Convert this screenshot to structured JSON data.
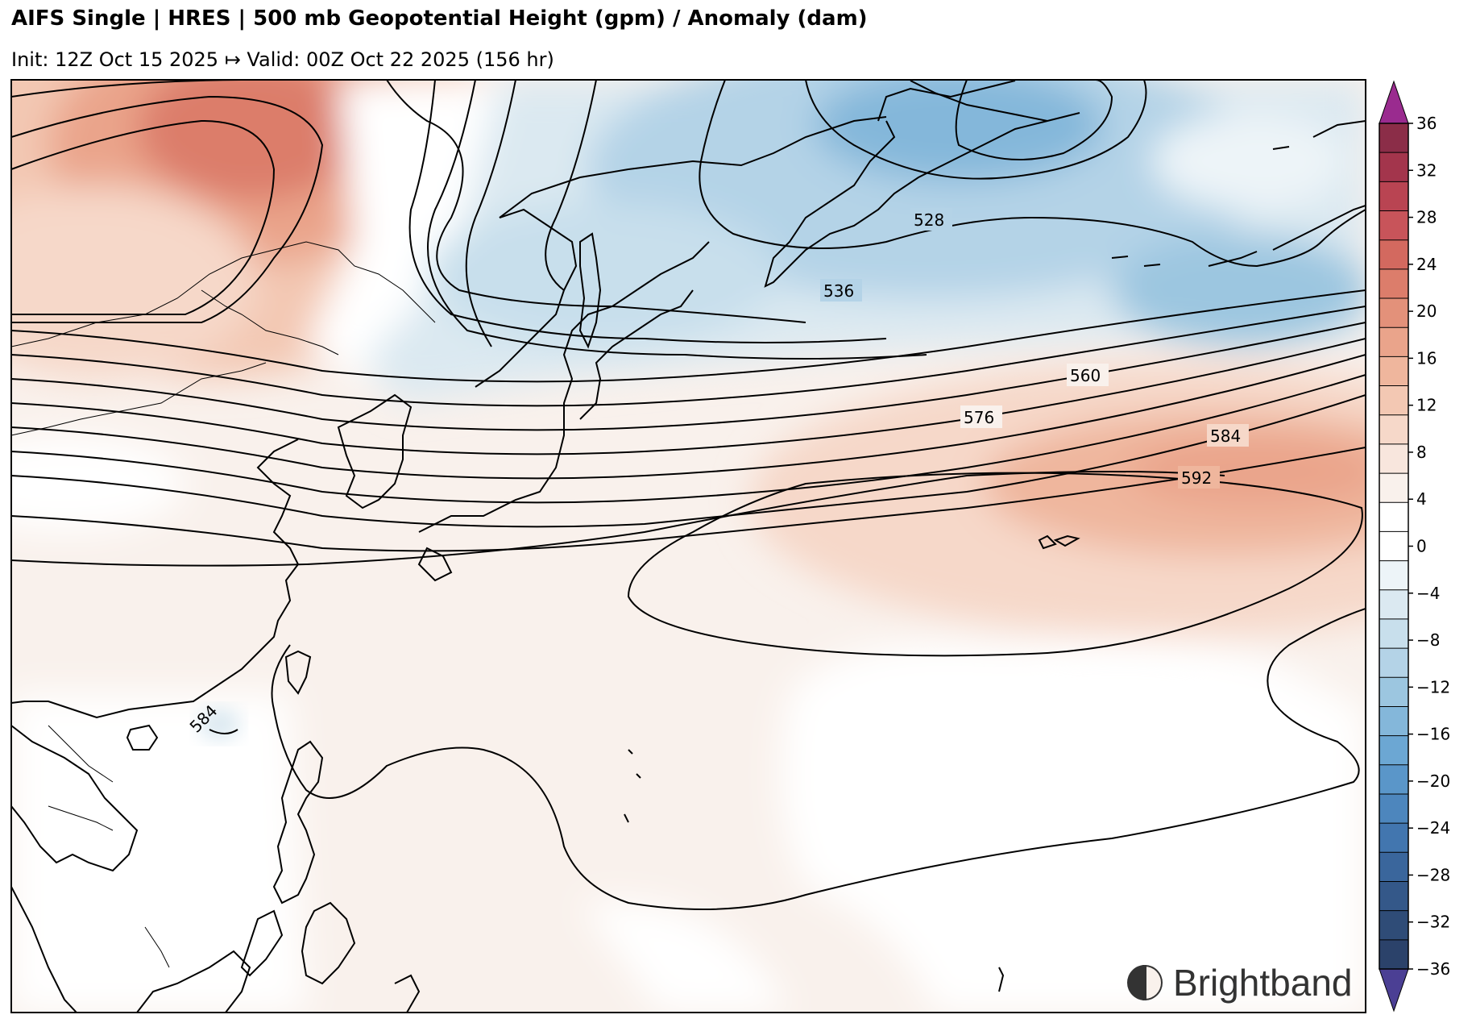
{
  "header": {
    "title": "AIFS Single | HRES | 500 mb Geopotential Height (gpm) / Anomaly (dam)",
    "subtitle": "Init: 12Z Oct 15 2025 ↦ Valid: 00Z Oct 22 2025 (156 hr)"
  },
  "map": {
    "contour_labels": [
      "528",
      "536",
      "560",
      "576",
      "584",
      "592",
      "584"
    ],
    "coastline_color": "#000000",
    "contour_color": "#000000"
  },
  "colorbar": {
    "ticks": [
      "36",
      "32",
      "28",
      "24",
      "20",
      "16",
      "12",
      "8",
      "4",
      "0",
      "−4",
      "−8",
      "−12",
      "−16",
      "−20",
      "−24",
      "−28",
      "−32",
      "−36"
    ],
    "colors": [
      "#8b2d48",
      "#a3354c",
      "#b94452",
      "#c8545a",
      "#d3695f",
      "#dc7d6b",
      "#e3917a",
      "#eaa48b",
      "#efb69d",
      "#f3c8b3",
      "#f6d8c9",
      "#f8e6dd",
      "#f9f1ec",
      "#ffffff",
      "#ffffff",
      "#edf4f8",
      "#dbe9f1",
      "#c8dfec",
      "#b4d3e7",
      "#9cc6e0",
      "#84b7da",
      "#6ca7d3",
      "#5a96c9",
      "#4d86bd",
      "#4276af",
      "#3a669c",
      "#345889",
      "#2f4c77",
      "#2b426a"
    ],
    "over_color": "#9a2b8f",
    "under_color": "#4b3f94"
  },
  "branding": {
    "logo_text": "Brightband"
  }
}
